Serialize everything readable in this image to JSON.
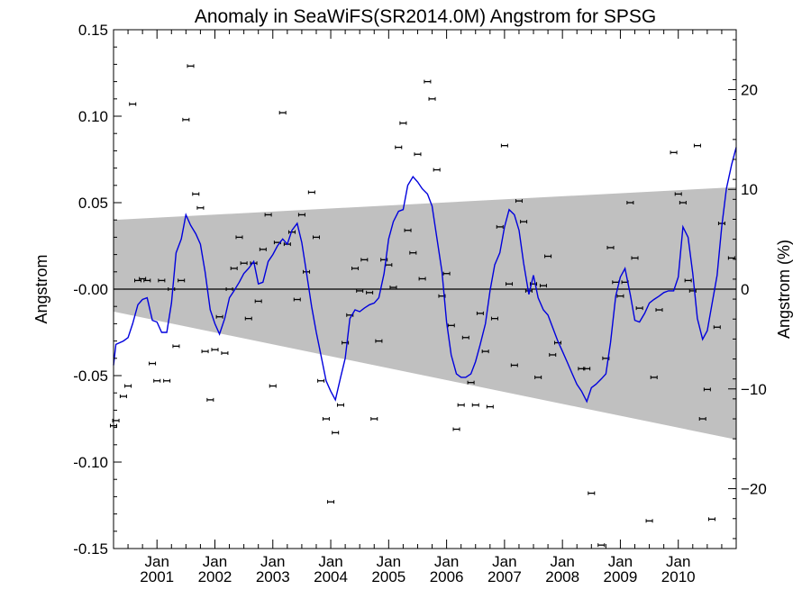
{
  "chart_data": {
    "type": "scatter",
    "title": "Anomaly in SeaWiFS(SR2014.0M) Angstrom for SPSG",
    "ylabel_left": "Angstrom",
    "ylabel_right": "Angstrom (%)",
    "xlim": [
      2000.25,
      2011.0
    ],
    "ylim": [
      -0.15,
      0.15
    ],
    "y2lim": [
      -26,
      26
    ],
    "yticks": [
      0.15,
      0.1,
      0.05,
      0.0,
      -0.05,
      -0.1,
      -0.15
    ],
    "ytick_labels": [
      "0.15",
      "0.10",
      "0.05",
      "-0.00",
      "-0.05",
      "-0.10",
      "-0.15"
    ],
    "y2ticks": [
      20,
      10,
      0,
      -10,
      -20
    ],
    "y2tick_labels": [
      "20",
      "10",
      "0",
      "−10",
      "−20"
    ],
    "xticks": [
      {
        "x": 2001.0,
        "month": "Jan",
        "year": "2001"
      },
      {
        "x": 2002.0,
        "month": "Jan",
        "year": "2002"
      },
      {
        "x": 2003.0,
        "month": "Jan",
        "year": "2003"
      },
      {
        "x": 2004.0,
        "month": "Jan",
        "year": "2004"
      },
      {
        "x": 2005.0,
        "month": "Jan",
        "year": "2005"
      },
      {
        "x": 2006.0,
        "month": "Jan",
        "year": "2006"
      },
      {
        "x": 2007.0,
        "month": "Jan",
        "year": "2007"
      },
      {
        "x": 2008.0,
        "month": "Jan",
        "year": "2008"
      },
      {
        "x": 2009.0,
        "month": "Jan",
        "year": "2009"
      },
      {
        "x": 2010.0,
        "month": "Jan",
        "year": "2010"
      }
    ],
    "band": {
      "start_x": 2000.25,
      "end_x": 2011.0,
      "upper": [
        0.04,
        0.059
      ],
      "lower": [
        -0.013,
        -0.087
      ],
      "color": "#c0c0c0"
    },
    "zero_line": 0.0,
    "line_color": "#0000dd",
    "marker_color": "#000000",
    "points": [
      [
        2000.25,
        -0.079
      ],
      [
        2000.29,
        -0.076
      ],
      [
        2000.42,
        -0.062
      ],
      [
        2000.5,
        -0.056
      ],
      [
        2000.58,
        0.107
      ],
      [
        2000.67,
        0.005
      ],
      [
        2000.75,
        0.006
      ],
      [
        2000.83,
        0.005
      ],
      [
        2000.92,
        -0.043
      ],
      [
        2001.0,
        -0.053
      ],
      [
        2001.08,
        0.005
      ],
      [
        2001.17,
        -0.053
      ],
      [
        2001.25,
        0.0
      ],
      [
        2001.33,
        -0.033
      ],
      [
        2001.42,
        0.005
      ],
      [
        2001.5,
        0.098
      ],
      [
        2001.58,
        0.129
      ],
      [
        2001.67,
        0.055
      ],
      [
        2001.75,
        0.047
      ],
      [
        2001.83,
        -0.036
      ],
      [
        2001.92,
        -0.064
      ],
      [
        2002.0,
        -0.035
      ],
      [
        2002.08,
        -0.016
      ],
      [
        2002.17,
        -0.037
      ],
      [
        2002.25,
        0.0
      ],
      [
        2002.33,
        0.012
      ],
      [
        2002.42,
        0.03
      ],
      [
        2002.5,
        0.015
      ],
      [
        2002.58,
        -0.017
      ],
      [
        2002.67,
        0.015
      ],
      [
        2002.75,
        -0.007
      ],
      [
        2002.83,
        0.023
      ],
      [
        2002.92,
        0.043
      ],
      [
        2003.0,
        -0.056
      ],
      [
        2003.08,
        0.027
      ],
      [
        2003.17,
        0.102
      ],
      [
        2003.25,
        0.026
      ],
      [
        2003.33,
        0.033
      ],
      [
        2003.42,
        -0.006
      ],
      [
        2003.5,
        0.043
      ],
      [
        2003.58,
        0.01
      ],
      [
        2003.67,
        0.056
      ],
      [
        2003.75,
        0.03
      ],
      [
        2003.83,
        -0.053
      ],
      [
        2003.92,
        -0.075
      ],
      [
        2004.0,
        -0.123
      ],
      [
        2004.08,
        -0.083
      ],
      [
        2004.17,
        -0.067
      ],
      [
        2004.25,
        -0.031
      ],
      [
        2004.33,
        -0.015
      ],
      [
        2004.42,
        0.012
      ],
      [
        2004.5,
        -0.001
      ],
      [
        2004.58,
        0.017
      ],
      [
        2004.67,
        -0.002
      ],
      [
        2004.75,
        -0.075
      ],
      [
        2004.83,
        -0.03
      ],
      [
        2004.92,
        0.017
      ],
      [
        2005.0,
        0.014
      ],
      [
        2005.08,
        0.001
      ],
      [
        2005.17,
        0.082
      ],
      [
        2005.25,
        0.096
      ],
      [
        2005.33,
        0.034
      ],
      [
        2005.42,
        0.021
      ],
      [
        2005.5,
        0.078
      ],
      [
        2005.58,
        0.006
      ],
      [
        2005.67,
        0.12
      ],
      [
        2005.75,
        0.11
      ],
      [
        2005.83,
        0.069
      ],
      [
        2005.92,
        -0.004
      ],
      [
        2006.0,
        0.009
      ],
      [
        2006.08,
        -0.021
      ],
      [
        2006.17,
        -0.081
      ],
      [
        2006.25,
        -0.067
      ],
      [
        2006.33,
        -0.028
      ],
      [
        2006.42,
        -0.054
      ],
      [
        2006.5,
        -0.067
      ],
      [
        2006.58,
        -0.014
      ],
      [
        2006.67,
        -0.036
      ],
      [
        2006.75,
        -0.068
      ],
      [
        2006.83,
        -0.017
      ],
      [
        2006.92,
        0.036
      ],
      [
        2007.0,
        0.083
      ],
      [
        2007.08,
        0.003
      ],
      [
        2007.17,
        -0.044
      ],
      [
        2007.25,
        0.051
      ],
      [
        2007.33,
        0.039
      ],
      [
        2007.42,
        -0.001
      ],
      [
        2007.5,
        0.003
      ],
      [
        2007.58,
        -0.051
      ],
      [
        2007.67,
        0.002
      ],
      [
        2007.75,
        0.019
      ],
      [
        2007.83,
        -0.038
      ],
      [
        2007.92,
        -0.031
      ],
      [
        2008.33,
        -0.046
      ],
      [
        2008.42,
        -0.046
      ],
      [
        2008.5,
        -0.118
      ],
      [
        2008.67,
        -0.148
      ],
      [
        2008.75,
        -0.04
      ],
      [
        2008.83,
        0.024
      ],
      [
        2008.92,
        0.004
      ],
      [
        2009.0,
        -0.004
      ],
      [
        2009.08,
        0.004
      ],
      [
        2009.17,
        0.05
      ],
      [
        2009.25,
        0.018
      ],
      [
        2009.33,
        -0.011
      ],
      [
        2009.5,
        -0.134
      ],
      [
        2009.58,
        -0.051
      ],
      [
        2009.67,
        -0.012
      ],
      [
        2009.92,
        0.079
      ],
      [
        2010.0,
        0.055
      ],
      [
        2010.08,
        0.05
      ],
      [
        2010.17,
        0.005
      ],
      [
        2010.25,
        -0.001
      ],
      [
        2010.33,
        0.083
      ],
      [
        2010.42,
        -0.075
      ],
      [
        2010.5,
        -0.058
      ],
      [
        2010.58,
        -0.133
      ],
      [
        2010.67,
        -0.022
      ],
      [
        2010.75,
        0.038
      ],
      [
        2010.92,
        0.018
      ]
    ],
    "smoothed": [
      [
        2000.25,
        -0.044
      ],
      [
        2000.29,
        -0.032
      ],
      [
        2000.42,
        -0.03
      ],
      [
        2000.5,
        -0.028
      ],
      [
        2000.58,
        -0.02
      ],
      [
        2000.67,
        -0.009
      ],
      [
        2000.75,
        -0.006
      ],
      [
        2000.83,
        -0.005
      ],
      [
        2000.92,
        -0.018
      ],
      [
        2001.0,
        -0.019
      ],
      [
        2001.08,
        -0.025
      ],
      [
        2001.17,
        -0.025
      ],
      [
        2001.25,
        -0.008
      ],
      [
        2001.33,
        0.021
      ],
      [
        2001.42,
        0.029
      ],
      [
        2001.5,
        0.043
      ],
      [
        2001.58,
        0.037
      ],
      [
        2001.67,
        0.032
      ],
      [
        2001.75,
        0.026
      ],
      [
        2001.83,
        0.01
      ],
      [
        2001.92,
        -0.012
      ],
      [
        2002.0,
        -0.02
      ],
      [
        2002.08,
        -0.026
      ],
      [
        2002.17,
        -0.017
      ],
      [
        2002.25,
        -0.005
      ],
      [
        2002.33,
        -0.001
      ],
      [
        2002.42,
        0.004
      ],
      [
        2002.5,
        0.009
      ],
      [
        2002.58,
        0.012
      ],
      [
        2002.67,
        0.016
      ],
      [
        2002.75,
        0.003
      ],
      [
        2002.83,
        0.004
      ],
      [
        2002.92,
        0.016
      ],
      [
        2003.0,
        0.02
      ],
      [
        2003.08,
        0.025
      ],
      [
        2003.17,
        0.029
      ],
      [
        2003.25,
        0.026
      ],
      [
        2003.33,
        0.034
      ],
      [
        2003.42,
        0.038
      ],
      [
        2003.5,
        0.027
      ],
      [
        2003.58,
        0.01
      ],
      [
        2003.67,
        -0.01
      ],
      [
        2003.75,
        -0.025
      ],
      [
        2003.83,
        -0.038
      ],
      [
        2003.92,
        -0.053
      ],
      [
        2004.0,
        -0.059
      ],
      [
        2004.08,
        -0.064
      ],
      [
        2004.17,
        -0.051
      ],
      [
        2004.25,
        -0.04
      ],
      [
        2004.33,
        -0.017
      ],
      [
        2004.42,
        -0.012
      ],
      [
        2004.5,
        -0.013
      ],
      [
        2004.58,
        -0.011
      ],
      [
        2004.67,
        -0.009
      ],
      [
        2004.75,
        -0.008
      ],
      [
        2004.83,
        -0.005
      ],
      [
        2004.92,
        0.009
      ],
      [
        2005.0,
        0.029
      ],
      [
        2005.08,
        0.039
      ],
      [
        2005.17,
        0.045
      ],
      [
        2005.25,
        0.046
      ],
      [
        2005.33,
        0.06
      ],
      [
        2005.42,
        0.065
      ],
      [
        2005.5,
        0.062
      ],
      [
        2005.58,
        0.058
      ],
      [
        2005.67,
        0.055
      ],
      [
        2005.75,
        0.048
      ],
      [
        2005.83,
        0.03
      ],
      [
        2005.92,
        0.01
      ],
      [
        2006.0,
        -0.019
      ],
      [
        2006.08,
        -0.038
      ],
      [
        2006.17,
        -0.049
      ],
      [
        2006.25,
        -0.051
      ],
      [
        2006.33,
        -0.051
      ],
      [
        2006.42,
        -0.049
      ],
      [
        2006.5,
        -0.042
      ],
      [
        2006.58,
        -0.032
      ],
      [
        2006.67,
        -0.02
      ],
      [
        2006.75,
        -0.001
      ],
      [
        2006.83,
        0.014
      ],
      [
        2006.92,
        0.021
      ],
      [
        2007.0,
        0.036
      ],
      [
        2007.08,
        0.046
      ],
      [
        2007.17,
        0.043
      ],
      [
        2007.25,
        0.034
      ],
      [
        2007.33,
        0.015
      ],
      [
        2007.42,
        -0.003
      ],
      [
        2007.5,
        0.008
      ],
      [
        2007.58,
        -0.005
      ],
      [
        2007.67,
        -0.012
      ],
      [
        2007.75,
        -0.015
      ],
      [
        2007.83,
        -0.022
      ],
      [
        2007.92,
        -0.03
      ],
      [
        2008.0,
        -0.036
      ],
      [
        2008.08,
        -0.042
      ],
      [
        2008.17,
        -0.049
      ],
      [
        2008.25,
        -0.055
      ],
      [
        2008.33,
        -0.059
      ],
      [
        2008.42,
        -0.065
      ],
      [
        2008.5,
        -0.057
      ],
      [
        2008.58,
        -0.055
      ],
      [
        2008.67,
        -0.052
      ],
      [
        2008.75,
        -0.049
      ],
      [
        2008.83,
        -0.031
      ],
      [
        2008.92,
        -0.004
      ],
      [
        2009.0,
        0.007
      ],
      [
        2009.08,
        0.012
      ],
      [
        2009.17,
        -0.003
      ],
      [
        2009.25,
        -0.018
      ],
      [
        2009.33,
        -0.019
      ],
      [
        2009.42,
        -0.014
      ],
      [
        2009.5,
        -0.008
      ],
      [
        2009.58,
        -0.006
      ],
      [
        2009.67,
        -0.004
      ],
      [
        2009.75,
        -0.002
      ],
      [
        2009.83,
        -0.001
      ],
      [
        2009.92,
        -0.001
      ],
      [
        2010.0,
        0.007
      ],
      [
        2010.08,
        0.036
      ],
      [
        2010.17,
        0.03
      ],
      [
        2010.25,
        0.009
      ],
      [
        2010.33,
        -0.017
      ],
      [
        2010.42,
        -0.029
      ],
      [
        2010.5,
        -0.024
      ],
      [
        2010.58,
        -0.009
      ],
      [
        2010.67,
        0.008
      ],
      [
        2010.75,
        0.036
      ],
      [
        2010.83,
        0.058
      ],
      [
        2010.92,
        0.072
      ],
      [
        2011.0,
        0.082
      ]
    ]
  }
}
